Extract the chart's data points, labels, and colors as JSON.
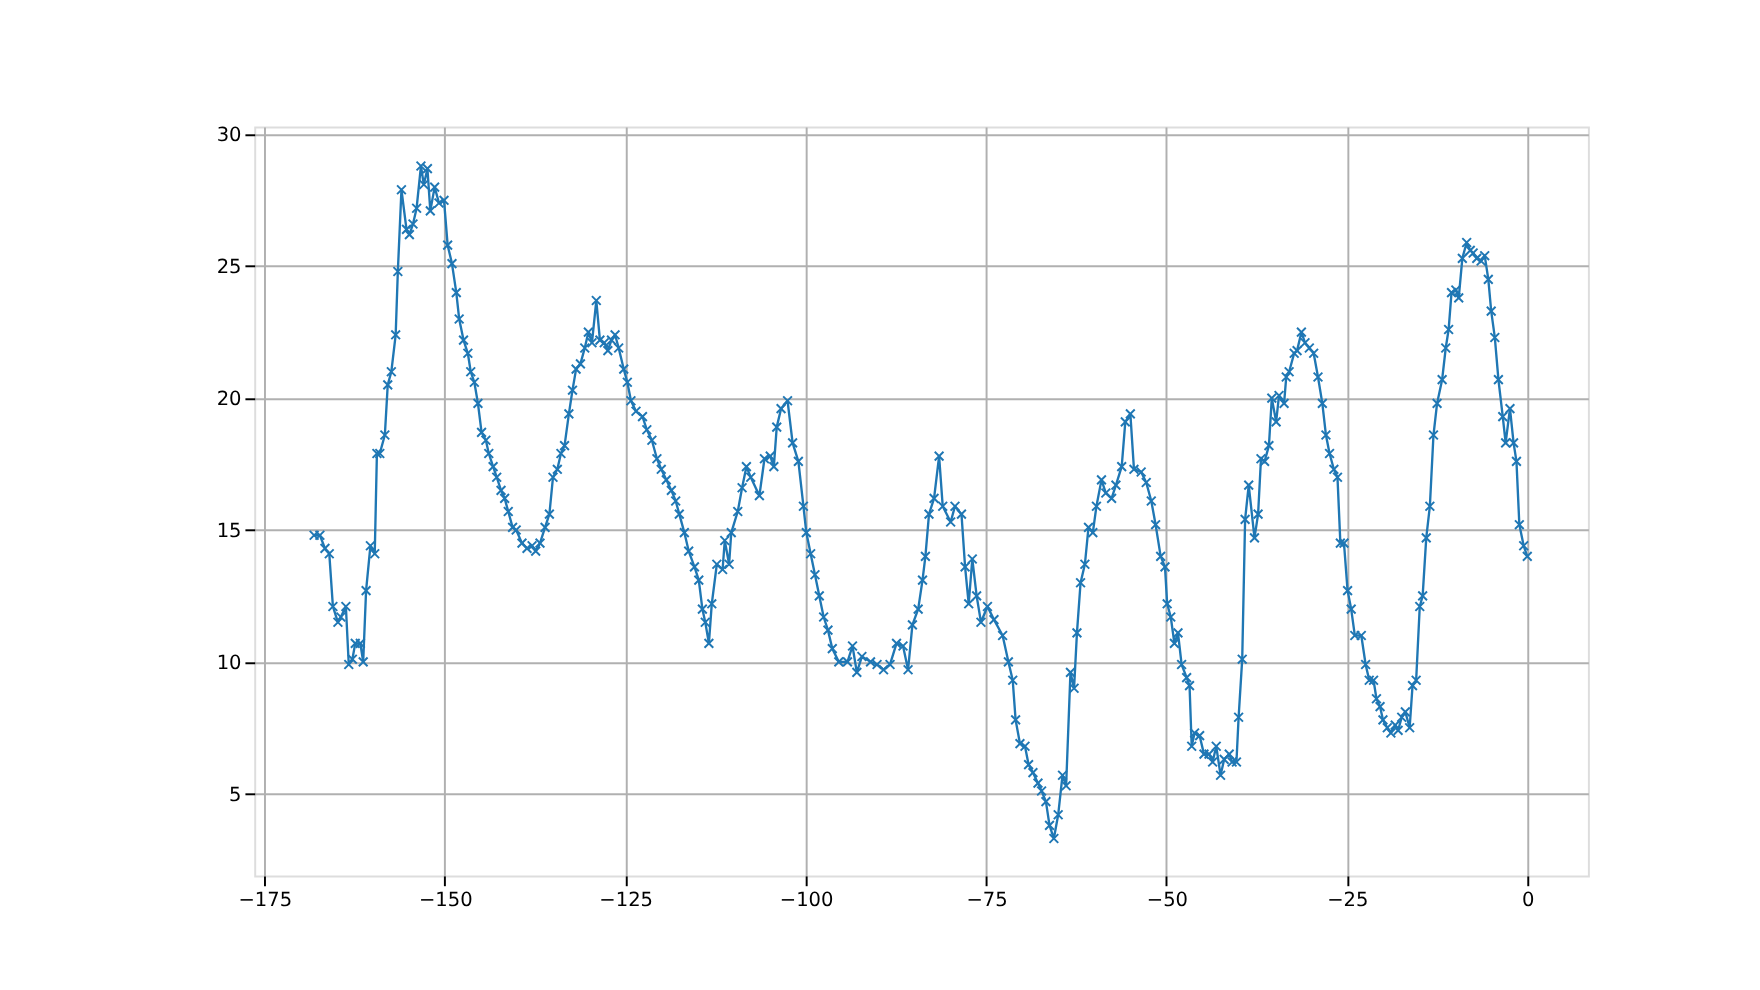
{
  "chart_data": {
    "type": "line",
    "marker": "cross",
    "line_style": "solid",
    "grid": true,
    "xlim": [
      -176.4,
      8.4
    ],
    "ylim": [
      1.9,
      30.3
    ],
    "xticks": [
      -175,
      -150,
      -125,
      -100,
      -75,
      -50,
      -25,
      0
    ],
    "yticks": [
      5,
      10,
      15,
      20,
      25,
      30
    ],
    "series": [
      {
        "color": "#1f77b4",
        "x": [
          -168.1,
          -167.3,
          -166.6,
          -166.0,
          -165.5,
          -164.8,
          -164.4,
          -163.7,
          -163.3,
          -162.8,
          -162.4,
          -161.7,
          -161.3,
          -160.9,
          -160.3,
          -159.7,
          -159.4,
          -159.0,
          -158.3,
          -157.9,
          -157.4,
          -156.8,
          -156.5,
          -156.0,
          -155.3,
          -154.9,
          -154.4,
          -153.9,
          -153.3,
          -152.9,
          -152.4,
          -152.0,
          -151.4,
          -150.8,
          -150.1,
          -149.6,
          -149.0,
          -148.4,
          -148.0,
          -147.4,
          -146.8,
          -146.4,
          -145.9,
          -145.4,
          -144.9,
          -144.3,
          -143.9,
          -143.3,
          -142.8,
          -142.2,
          -141.7,
          -141.2,
          -140.6,
          -140.1,
          -139.3,
          -138.6,
          -137.9,
          -137.4,
          -136.8,
          -136.1,
          -135.5,
          -135.0,
          -134.4,
          -133.9,
          -133.4,
          -132.8,
          -132.3,
          -131.8,
          -131.2,
          -130.6,
          -130.1,
          -129.6,
          -129.0,
          -128.5,
          -127.9,
          -127.4,
          -126.9,
          -126.4,
          -125.9,
          -125.2,
          -124.7,
          -124.2,
          -123.5,
          -122.6,
          -122.0,
          -121.3,
          -120.6,
          -120.0,
          -119.3,
          -118.6,
          -118.0,
          -117.5,
          -116.8,
          -116.2,
          -115.4,
          -114.8,
          -114.3,
          -113.9,
          -113.4,
          -113.0,
          -112.3,
          -111.5,
          -111.2,
          -110.6,
          -110.3,
          -109.4,
          -108.8,
          -108.2,
          -107.6,
          -106.4,
          -105.7,
          -104.9,
          -104.4,
          -104.0,
          -103.4,
          -102.5,
          -101.8,
          -101.0,
          -100.3,
          -99.9,
          -99.3,
          -98.7,
          -98.1,
          -97.5,
          -96.9,
          -96.3,
          -95.4,
          -94.2,
          -93.5,
          -92.9,
          -92.2,
          -91.0,
          -90.1,
          -89.2,
          -88.3,
          -87.4,
          -86.5,
          -85.8,
          -85.2,
          -84.4,
          -83.8,
          -83.4,
          -82.9,
          -82.2,
          -81.5,
          -81.0,
          -79.9,
          -79.3,
          -78.4,
          -77.9,
          -77.4,
          -76.9,
          -76.3,
          -75.7,
          -74.8,
          -73.9,
          -72.7,
          -71.9,
          -71.3,
          -70.9,
          -70.3,
          -69.6,
          -69.1,
          -68.5,
          -67.8,
          -67.3,
          -66.7,
          -66.2,
          -65.6,
          -65.0,
          -64.4,
          -63.9,
          -63.3,
          -62.8,
          -62.4,
          -61.9,
          -61.3,
          -60.8,
          -60.2,
          -59.7,
          -59.0,
          -58.4,
          -57.6,
          -57.0,
          -56.2,
          -55.7,
          -55.0,
          -54.5,
          -53.5,
          -52.8,
          -52.1,
          -51.5,
          -50.8,
          -50.2,
          -49.9,
          -49.4,
          -48.9,
          -48.4,
          -47.9,
          -47.2,
          -46.8,
          -46.5,
          -46.1,
          -45.4,
          -44.8,
          -44.1,
          -43.6,
          -43.1,
          -42.5,
          -42.0,
          -41.3,
          -40.9,
          -40.3,
          -40.0,
          -39.5,
          -39.1,
          -38.6,
          -37.8,
          -37.3,
          -36.9,
          -36.4,
          -35.8,
          -35.4,
          -34.8,
          -34.4,
          -33.7,
          -33.4,
          -33.0,
          -32.3,
          -31.9,
          -31.3,
          -30.8,
          -30.2,
          -29.6,
          -29.0,
          -28.4,
          -27.9,
          -27.4,
          -26.8,
          -26.3,
          -25.9,
          -25.4,
          -24.9,
          -24.4,
          -23.9,
          -23.0,
          -22.4,
          -21.9,
          -21.3,
          -20.9,
          -20.4,
          -20.0,
          -19.4,
          -18.9,
          -18.3,
          -17.9,
          -17.4,
          -16.9,
          -16.3,
          -15.9,
          -15.4,
          -14.9,
          -14.5,
          -14.0,
          -13.5,
          -13.0,
          -12.5,
          -11.8,
          -11.3,
          -10.9,
          -10.5,
          -9.9,
          -9.5,
          -9.0,
          -8.4,
          -7.9,
          -7.5,
          -7.0,
          -6.4,
          -5.9,
          -5.4,
          -5.0,
          -4.5,
          -4.0,
          -3.4,
          -3.0,
          -2.4,
          -1.9,
          -1.5,
          -1.1,
          -0.5,
          0.0
        ],
        "values": [
          14.8,
          14.8,
          14.3,
          14.1,
          12.1,
          11.5,
          11.7,
          12.1,
          9.9,
          10.1,
          10.7,
          10.7,
          10.0,
          12.7,
          14.4,
          14.1,
          17.9,
          17.9,
          18.6,
          20.5,
          21.0,
          22.4,
          24.8,
          27.9,
          26.4,
          26.2,
          26.6,
          27.2,
          28.8,
          28.1,
          28.7,
          27.1,
          28.0,
          27.4,
          27.5,
          25.8,
          25.1,
          24.0,
          23.0,
          22.2,
          21.7,
          21.0,
          20.6,
          19.8,
          18.7,
          18.4,
          17.9,
          17.4,
          17.0,
          16.5,
          16.2,
          15.7,
          15.1,
          15.0,
          14.5,
          14.3,
          14.4,
          14.2,
          14.5,
          15.1,
          15.6,
          17.0,
          17.3,
          17.9,
          18.2,
          19.4,
          20.3,
          21.1,
          21.3,
          21.9,
          22.5,
          22.1,
          23.7,
          22.2,
          22.1,
          21.8,
          22.2,
          22.4,
          21.9,
          21.1,
          20.6,
          19.9,
          19.5,
          19.3,
          18.8,
          18.4,
          17.7,
          17.3,
          16.9,
          16.5,
          16.1,
          15.6,
          14.9,
          14.2,
          13.6,
          13.1,
          12.0,
          11.5,
          10.7,
          12.2,
          13.7,
          13.5,
          14.6,
          13.7,
          14.9,
          15.7,
          16.6,
          17.4,
          17.0,
          16.3,
          17.7,
          17.8,
          17.4,
          18.9,
          19.6,
          19.9,
          18.3,
          17.6,
          15.9,
          14.9,
          14.1,
          13.3,
          12.5,
          11.7,
          11.2,
          10.5,
          10.0,
          10.0,
          10.6,
          9.6,
          10.2,
          10.0,
          9.9,
          9.7,
          9.9,
          10.7,
          10.6,
          9.7,
          11.4,
          12.0,
          13.1,
          14.0,
          15.6,
          16.2,
          17.8,
          15.9,
          15.3,
          15.9,
          15.6,
          13.6,
          12.2,
          13.9,
          12.5,
          11.5,
          12.1,
          11.6,
          11.0,
          10.0,
          9.3,
          7.8,
          6.9,
          6.8,
          6.1,
          5.8,
          5.4,
          5.1,
          4.7,
          3.8,
          3.3,
          4.2,
          5.7,
          5.3,
          9.6,
          9.0,
          11.1,
          13.0,
          13.7,
          15.1,
          14.9,
          15.9,
          16.9,
          16.4,
          16.2,
          16.7,
          17.4,
          19.1,
          19.4,
          17.3,
          17.2,
          16.8,
          16.1,
          15.2,
          14.0,
          13.6,
          12.2,
          11.7,
          10.7,
          11.1,
          9.9,
          9.4,
          9.1,
          6.8,
          7.3,
          7.2,
          6.5,
          6.5,
          6.2,
          6.8,
          5.7,
          6.3,
          6.5,
          6.2,
          6.2,
          7.9,
          10.1,
          15.4,
          16.7,
          14.7,
          15.6,
          17.7,
          17.6,
          18.2,
          20.0,
          19.1,
          20.1,
          19.8,
          20.8,
          21.0,
          21.7,
          21.8,
          22.5,
          22.1,
          21.9,
          21.7,
          20.8,
          19.8,
          18.6,
          17.9,
          17.3,
          17.0,
          14.5,
          14.5,
          12.7,
          12.0,
          11.0,
          11.0,
          9.9,
          9.3,
          9.3,
          8.6,
          8.3,
          7.8,
          7.5,
          7.3,
          7.6,
          7.4,
          7.9,
          8.1,
          7.5,
          9.1,
          9.3,
          12.1,
          12.5,
          14.7,
          15.9,
          18.6,
          19.8,
          20.7,
          21.9,
          22.6,
          24.0,
          24.1,
          23.8,
          25.3,
          25.9,
          25.6,
          25.5,
          25.3,
          25.2,
          25.4,
          24.5,
          23.3,
          22.3,
          20.7,
          19.3,
          18.3,
          19.6,
          18.3,
          17.6,
          15.2,
          14.4,
          14.0
        ]
      }
    ]
  }
}
